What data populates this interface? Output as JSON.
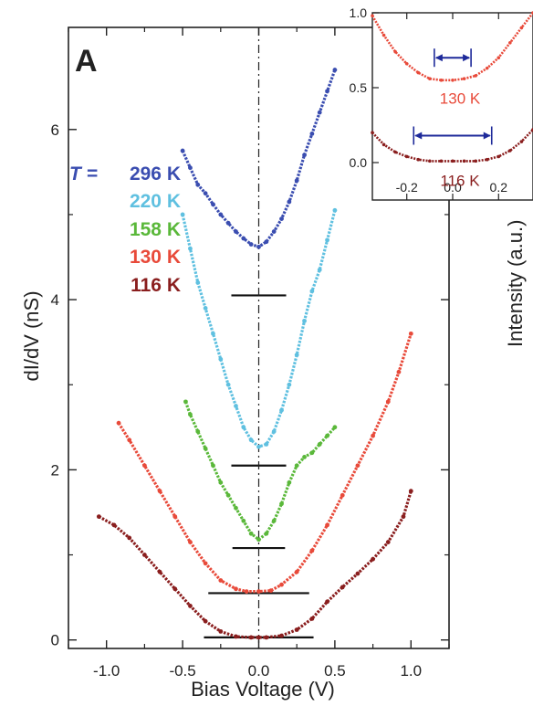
{
  "chart_data": [
    {
      "type": "line",
      "panel_label": "A",
      "xlabel": "Bias Voltage (V)",
      "ylabel": "dI/dV (nS)",
      "xlim": [
        -1.25,
        1.25
      ],
      "ylim": [
        -0.1,
        7.2
      ],
      "x_ticks": [
        -1.0,
        -0.5,
        0.0,
        0.5,
        1.0
      ],
      "x_tick_labels": [
        "-1.0",
        "-0.5",
        "0.0",
        "0.5",
        "1.0"
      ],
      "y_ticks": [
        0,
        2,
        4,
        6
      ],
      "y_tick_labels": [
        "0",
        "2",
        "4",
        "6"
      ],
      "grid": false,
      "legend_placement": "top-left",
      "legend_prefix": "T =",
      "vertical_reference_line_x": 0.0,
      "series": [
        {
          "name": "296 K",
          "color": "#3a4db0",
          "baseline": 4.05,
          "x": [
            -0.5,
            -0.45,
            -0.4,
            -0.35,
            -0.3,
            -0.25,
            -0.2,
            -0.15,
            -0.1,
            -0.05,
            0.0,
            0.05,
            0.1,
            0.15,
            0.2,
            0.25,
            0.3,
            0.35,
            0.4,
            0.45,
            0.5
          ],
          "y": [
            5.75,
            5.55,
            5.35,
            5.25,
            5.12,
            5.0,
            4.9,
            4.8,
            4.72,
            4.65,
            4.62,
            4.68,
            4.8,
            4.95,
            5.15,
            5.4,
            5.7,
            5.95,
            6.2,
            6.45,
            6.7
          ]
        },
        {
          "name": "220 K",
          "color": "#5fc0e0",
          "baseline": 2.05,
          "x": [
            -0.5,
            -0.45,
            -0.4,
            -0.35,
            -0.3,
            -0.25,
            -0.2,
            -0.15,
            -0.1,
            -0.05,
            0.0,
            0.05,
            0.1,
            0.15,
            0.2,
            0.25,
            0.3,
            0.35,
            0.4,
            0.45,
            0.5
          ],
          "y": [
            5.0,
            4.6,
            4.2,
            3.9,
            3.6,
            3.3,
            3.0,
            2.75,
            2.5,
            2.35,
            2.27,
            2.3,
            2.45,
            2.7,
            3.0,
            3.35,
            3.75,
            4.1,
            4.35,
            4.7,
            5.05
          ]
        },
        {
          "name": "158 K",
          "color": "#5ab83a",
          "baseline": 1.08,
          "x": [
            -0.48,
            -0.45,
            -0.4,
            -0.35,
            -0.3,
            -0.25,
            -0.2,
            -0.15,
            -0.1,
            -0.05,
            0.0,
            0.05,
            0.1,
            0.15,
            0.2,
            0.25,
            0.3,
            0.35,
            0.4,
            0.45,
            0.5
          ],
          "y": [
            2.8,
            2.65,
            2.45,
            2.25,
            2.05,
            1.85,
            1.7,
            1.55,
            1.4,
            1.25,
            1.18,
            1.25,
            1.4,
            1.6,
            1.85,
            2.05,
            2.15,
            2.2,
            2.3,
            2.4,
            2.5
          ]
        },
        {
          "name": "130 K",
          "color": "#e84a3a",
          "baseline": 0.55,
          "x": [
            -0.92,
            -0.85,
            -0.75,
            -0.65,
            -0.55,
            -0.45,
            -0.35,
            -0.25,
            -0.15,
            -0.08,
            0.0,
            0.08,
            0.15,
            0.25,
            0.35,
            0.45,
            0.55,
            0.65,
            0.75,
            0.85,
            0.92,
            1.0
          ],
          "y": [
            2.55,
            2.35,
            2.05,
            1.75,
            1.45,
            1.15,
            0.9,
            0.7,
            0.6,
            0.57,
            0.57,
            0.58,
            0.65,
            0.8,
            1.05,
            1.35,
            1.7,
            2.05,
            2.4,
            2.8,
            3.15,
            3.6
          ]
        },
        {
          "name": "116 K",
          "color": "#8a1e1e",
          "baseline": 0.03,
          "x": [
            -1.05,
            -0.95,
            -0.85,
            -0.75,
            -0.65,
            -0.55,
            -0.45,
            -0.35,
            -0.25,
            -0.15,
            -0.05,
            0.0,
            0.05,
            0.15,
            0.25,
            0.35,
            0.45,
            0.55,
            0.65,
            0.75,
            0.85,
            0.95,
            1.0
          ],
          "y": [
            1.45,
            1.35,
            1.2,
            1.0,
            0.8,
            0.6,
            0.4,
            0.22,
            0.1,
            0.04,
            0.03,
            0.03,
            0.03,
            0.05,
            0.12,
            0.25,
            0.45,
            0.62,
            0.78,
            0.95,
            1.15,
            1.45,
            1.75
          ]
        }
      ]
    },
    {
      "type": "line",
      "role": "inset",
      "xlim": [
        -0.35,
        0.35
      ],
      "ylim": [
        -0.25,
        1.0
      ],
      "x_ticks": [
        -0.2,
        0.0,
        0.2
      ],
      "x_tick_labels": [
        "-0.2",
        "0.0",
        "0.2"
      ],
      "y_ticks": [
        0.0,
        0.5,
        1.0
      ],
      "y_tick_labels": [
        "0.0",
        "0.5",
        "1.0"
      ],
      "grid": false,
      "series": [
        {
          "name": "130 K",
          "color": "#e84a3a",
          "gap_arrow": [
            -0.08,
            0.08
          ],
          "x": [
            -0.35,
            -0.3,
            -0.25,
            -0.2,
            -0.15,
            -0.1,
            -0.05,
            0.0,
            0.05,
            0.1,
            0.15,
            0.2,
            0.25,
            0.3,
            0.35
          ],
          "y": [
            0.98,
            0.85,
            0.74,
            0.66,
            0.6,
            0.56,
            0.55,
            0.55,
            0.56,
            0.58,
            0.63,
            0.7,
            0.8,
            0.9,
            1.0
          ]
        },
        {
          "name": "116 K",
          "color": "#8a1e1e",
          "gap_arrow": [
            -0.17,
            0.17
          ],
          "x": [
            -0.35,
            -0.3,
            -0.25,
            -0.2,
            -0.15,
            -0.1,
            -0.05,
            0.0,
            0.05,
            0.1,
            0.15,
            0.2,
            0.25,
            0.3,
            0.35
          ],
          "y": [
            0.2,
            0.12,
            0.07,
            0.04,
            0.02,
            0.01,
            0.01,
            0.01,
            0.01,
            0.01,
            0.02,
            0.04,
            0.08,
            0.14,
            0.22
          ]
        }
      ]
    }
  ],
  "right_edge_fragment": "Intensity (a.u.)"
}
